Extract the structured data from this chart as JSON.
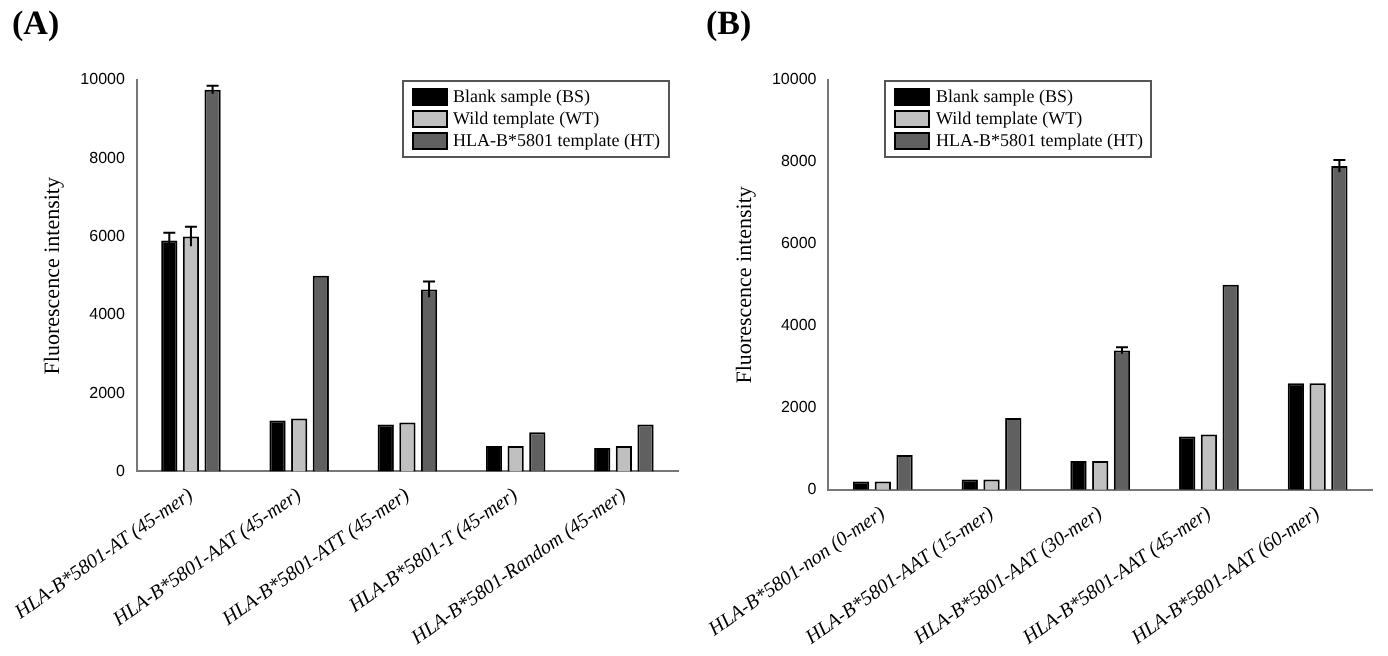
{
  "chart_data": [
    {
      "type": "bar",
      "title": "(A)",
      "ylabel": "Fluorescence intensity",
      "categories": [
        "HLA-B*5801-AT (45-mer)",
        "HLA-B*5801-AAT (45-mer)",
        "HLA-B*5801-ATT (45-mer)",
        "HLA-B*5801-T (45-mer)",
        "HLA-B*5801-Random (45-mer)"
      ],
      "series": [
        {
          "name": "Blank sample (BS)",
          "color": "#000000",
          "values": [
            5900,
            1300,
            1200,
            650,
            600
          ],
          "errors": [
            200,
            null,
            null,
            null,
            null
          ]
        },
        {
          "name": "Wild template (WT)",
          "color": "#c0c0c0",
          "values": [
            6000,
            1350,
            1250,
            650,
            650
          ],
          "errors": [
            250,
            null,
            null,
            null,
            null
          ]
        },
        {
          "name": "HLA-B*5801 template (HT)",
          "color": "#606060",
          "values": [
            9750,
            5000,
            4650,
            1000,
            1200
          ],
          "errors": [
            100,
            null,
            200,
            null,
            null
          ]
        }
      ],
      "ylim": [
        0,
        10000
      ],
      "yticks": [
        0,
        2000,
        4000,
        6000,
        8000,
        10000
      ],
      "grid": false,
      "legend": "top right"
    },
    {
      "type": "bar",
      "title": "(B)",
      "ylabel": "Fluorescence intensity",
      "categories": [
        "HLA-B*5801-non (0-mer)",
        "HLA-B*5801-AAT (15-mer)",
        "HLA-B*5801-AAT (30-mer)",
        "HLA-B*5801-AAT (45-mer)",
        "HLA-B*5801-AAT (60-mer)"
      ],
      "series": [
        {
          "name": "Blank sample (BS)",
          "color": "#000000",
          "values": [
            200,
            250,
            700,
            1300,
            2600
          ]
        },
        {
          "name": "Wild template (WT)",
          "color": "#c0c0c0",
          "values": [
            200,
            250,
            700,
            1350,
            2600
          ]
        },
        {
          "name": "HLA-B*5801 template (HT)",
          "color": "#606060",
          "values": [
            850,
            1750,
            3400,
            5000,
            7900
          ],
          "errors": [
            null,
            null,
            80,
            null,
            150
          ]
        }
      ],
      "ylim": [
        0,
        10000
      ],
      "yticks": [
        0,
        2000,
        4000,
        6000,
        8000,
        10000
      ],
      "grid": false,
      "legend": "top left"
    }
  ]
}
